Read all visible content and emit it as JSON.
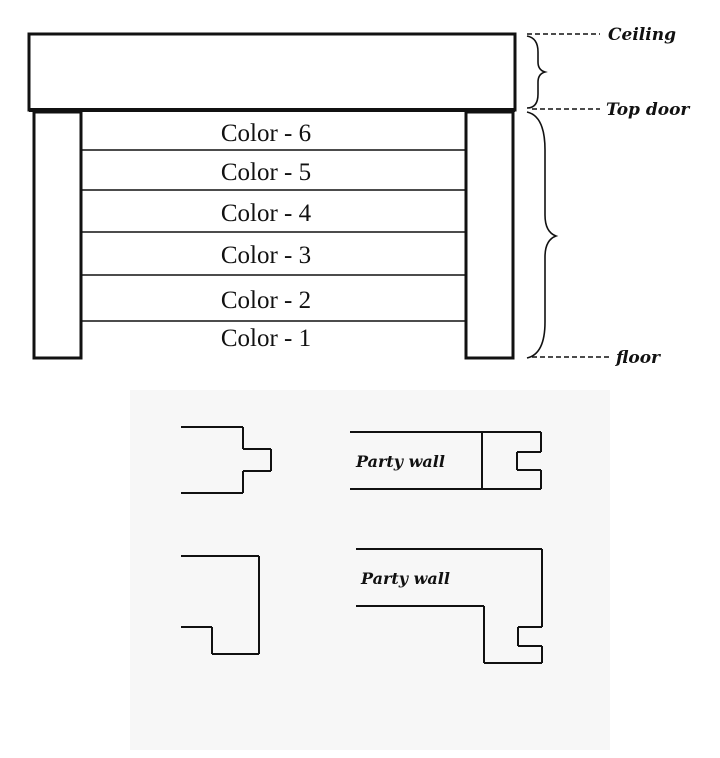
{
  "labels": {
    "ceiling": "Ceiling",
    "top_door": "Top door",
    "floor": "floor"
  },
  "bands": [
    "Color - 6",
    "Color - 5",
    "Color - 4",
    "Color - 3",
    "Color - 2",
    "Color - 1"
  ],
  "details": {
    "party_wall_top": "Party wall",
    "party_wall_bottom": "Party wall"
  }
}
